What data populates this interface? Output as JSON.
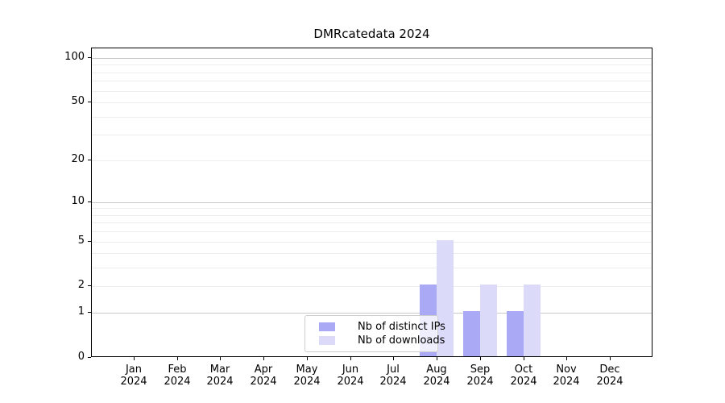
{
  "chart_data": {
    "type": "bar",
    "title": "DMRcatedata 2024",
    "x": {
      "months": [
        "Jan",
        "Feb",
        "Mar",
        "Apr",
        "May",
        "Jun",
        "Jul",
        "Aug",
        "Sep",
        "Oct",
        "Nov",
        "Dec"
      ],
      "year": "2024"
    },
    "series": [
      {
        "name": "Nb of distinct IPs",
        "color": "#a9a9f5",
        "values": [
          0,
          0,
          0,
          0,
          0,
          0,
          0,
          2,
          1,
          1,
          0,
          0
        ]
      },
      {
        "name": "Nb of downloads",
        "color": "#dbdbf9",
        "values": [
          0,
          0,
          0,
          0,
          0,
          0,
          0,
          5,
          2,
          2,
          0,
          0
        ]
      }
    ],
    "y_axis": {
      "scale": "log1p",
      "tick_labels": [
        0,
        1,
        2,
        5,
        10,
        20,
        50,
        100
      ],
      "gridline_values": [
        1,
        2,
        3,
        4,
        5,
        6,
        7,
        8,
        9,
        10,
        20,
        30,
        40,
        50,
        60,
        70,
        80,
        90,
        100
      ],
      "major_gridline_values": [
        1,
        10,
        100
      ],
      "range": [
        0,
        100
      ]
    },
    "legend": {
      "position": "lower center"
    },
    "grid": true,
    "colors": {
      "major_grid": "#c9c9c9",
      "minor_grid": "#ededed",
      "axis": "#000000",
      "legend_border": "#cccccc",
      "background": "#ffffff"
    }
  }
}
